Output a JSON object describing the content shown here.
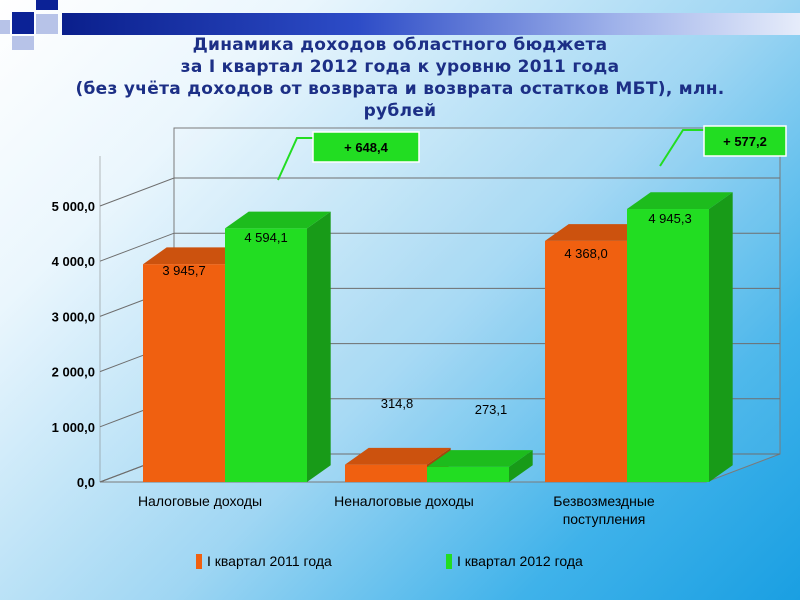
{
  "title": {
    "line1": "Динамика доходов областного бюджета",
    "line2": "за I квартал 2012 года к уровню 2011 года",
    "line3": "(без учёта доходов от возврата и возврата остатков МБТ), млн.",
    "line4": "рублей"
  },
  "colors": {
    "series_2011": "#f06010",
    "series_2012": "#22dd22",
    "callout_bg": "#22dd22",
    "title": "#1c2f86"
  },
  "chart_data": {
    "type": "bar",
    "categories": [
      "Налоговые доходы",
      "Неналоговые доходы",
      "Безвозмездные поступления"
    ],
    "category_lines": [
      [
        "Налоговые доходы"
      ],
      [
        "Неналоговые доходы"
      ],
      [
        "Безвозмездные",
        "поступления"
      ]
    ],
    "series": [
      {
        "name": "I квартал 2011 года",
        "values": [
          3945.7,
          314.8,
          4368.0
        ],
        "labels": [
          "3 945,7",
          "314,8",
          "4 368,0"
        ]
      },
      {
        "name": "I квартал 2012 года",
        "values": [
          4594.1,
          273.1,
          4945.3
        ],
        "labels": [
          "4 594,1",
          "273,1",
          "4 945,3"
        ]
      }
    ],
    "ylim": [
      0,
      5000
    ],
    "yticks": [
      0,
      1000,
      2000,
      3000,
      4000,
      5000
    ],
    "ytick_labels": [
      "0,0",
      "1 000,0",
      "2 000,0",
      "3 000,0",
      "4 000,0",
      "5 000,0"
    ],
    "annotations": [
      {
        "category": "Налоговые доходы",
        "text": "+ 648,4"
      },
      {
        "category": "Безвозмездные поступления",
        "text": "+ 577,2"
      }
    ],
    "legend_position": "bottom",
    "grid": true
  }
}
